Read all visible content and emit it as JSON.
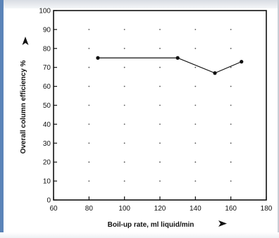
{
  "chart_data": {
    "type": "line",
    "title": "",
    "xlabel": "Boil-up rate, ml liquid/min",
    "ylabel": "Overall column efficiency %",
    "xlim": [
      60,
      180
    ],
    "ylim": [
      0,
      100
    ],
    "x_ticks": [
      60,
      80,
      100,
      120,
      140,
      160,
      180
    ],
    "y_ticks": [
      0,
      10,
      20,
      30,
      40,
      50,
      60,
      70,
      80,
      90,
      100
    ],
    "grid": "dotted",
    "series": [
      {
        "x": [
          85,
          130,
          151,
          166
        ],
        "y": [
          75,
          75,
          67,
          73
        ]
      }
    ],
    "colors": {
      "line": "#111111",
      "grid": "#555555"
    },
    "icons": {
      "x_axis_arrow": "right-arrow-icon",
      "y_axis_arrow": "up-arrow-icon"
    }
  }
}
